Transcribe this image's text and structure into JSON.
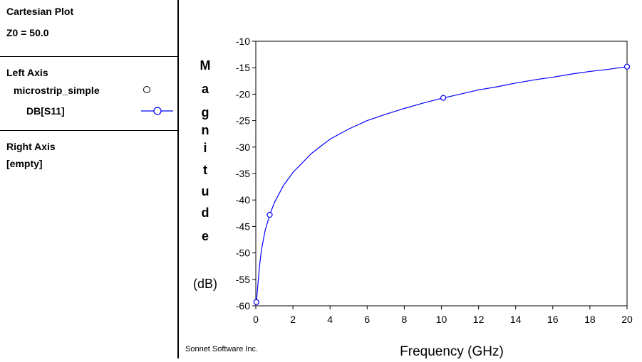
{
  "sidebar": {
    "plot_title": "Cartesian Plot",
    "z0": "Z0 = 50.0",
    "left_axis": {
      "heading": "Left Axis",
      "project": "microstrip_simple",
      "trace": "DB[S11]"
    },
    "right_axis": {
      "heading": "Right Axis",
      "status": "[empty]"
    }
  },
  "footer": {
    "credit": "Sonnet Software Inc."
  },
  "colors": {
    "trace": "#0000ff",
    "frame": "#000000"
  },
  "chart_data": {
    "type": "line",
    "xlabel": "Frequency (GHz)",
    "ylabel_letters": [
      "M",
      "a",
      "g",
      "n",
      "i",
      "t",
      "u",
      "d",
      "e"
    ],
    "ylabel_unit": "(dB)",
    "xlim": [
      0,
      20
    ],
    "ylim": [
      -60,
      -10
    ],
    "xticks": [
      0,
      2,
      4,
      6,
      8,
      10,
      12,
      14,
      16,
      18,
      20
    ],
    "yticks": [
      -10,
      -15,
      -20,
      -25,
      -30,
      -35,
      -40,
      -45,
      -50,
      -55,
      -60
    ],
    "grid": false,
    "series": [
      {
        "name": "DB[S11]",
        "x": [
          0.03,
          0.1,
          0.2,
          0.3,
          0.5,
          0.75,
          1.0,
          1.5,
          2.0,
          3.0,
          4.0,
          5.0,
          6.0,
          7.0,
          8.0,
          9.0,
          10.0,
          11.0,
          12.0,
          13.0,
          14.0,
          15.0,
          16.0,
          17.0,
          18.0,
          19.0,
          20.0
        ],
        "y": [
          -59.3,
          -56.5,
          -52.5,
          -49.5,
          -45.8,
          -42.8,
          -40.5,
          -37.2,
          -34.8,
          -31.2,
          -28.5,
          -26.6,
          -25.0,
          -23.8,
          -22.7,
          -21.7,
          -20.8,
          -20.0,
          -19.2,
          -18.6,
          -17.9,
          -17.3,
          -16.8,
          -16.2,
          -15.7,
          -15.3,
          -14.8
        ]
      }
    ],
    "markers": [
      {
        "x": 0.03,
        "y": -59.3
      },
      {
        "x": 0.75,
        "y": -42.8
      },
      {
        "x": 10.1,
        "y": -20.7
      },
      {
        "x": 20.0,
        "y": -14.8
      }
    ]
  }
}
